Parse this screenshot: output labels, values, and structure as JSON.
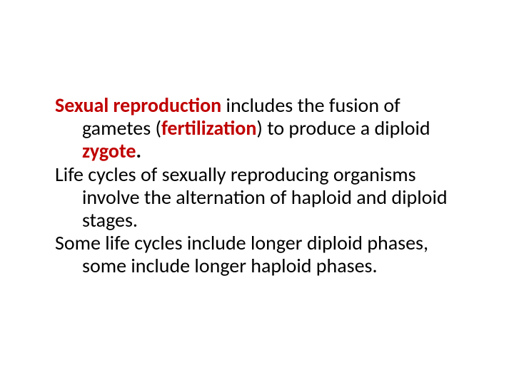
{
  "slide": {
    "fontsize_pt": 28,
    "text_color": "#000000",
    "emphasis_color": "#c00000",
    "background_color": "#ffffff",
    "paragraphs": [
      {
        "runs": [
          {
            "key": "p0r0",
            "text": "Sexual reproduction",
            "style": "bold-red"
          },
          {
            "key": "p0r1",
            "text": " includes the fusion of gametes (",
            "style": "plain"
          },
          {
            "key": "p0r2",
            "text": "fertilization",
            "style": "bold-red"
          },
          {
            "key": "p0r3",
            "text": ") to produce a diploid ",
            "style": "plain"
          },
          {
            "key": "p0r4",
            "text": "zygote",
            "style": "bold-red"
          },
          {
            "key": "p0r5",
            "text": ".",
            "style": "bold-black"
          }
        ]
      },
      {
        "runs": [
          {
            "key": "p1r0",
            "text": "Life cycles of sexually reproducing organisms involve the alternation of haploid and diploid stages.",
            "style": "plain"
          }
        ]
      },
      {
        "runs": [
          {
            "key": "p2r0",
            "text": "Some life cycles include longer diploid phases, some include longer haploid phases.",
            "style": "plain"
          }
        ]
      }
    ]
  }
}
